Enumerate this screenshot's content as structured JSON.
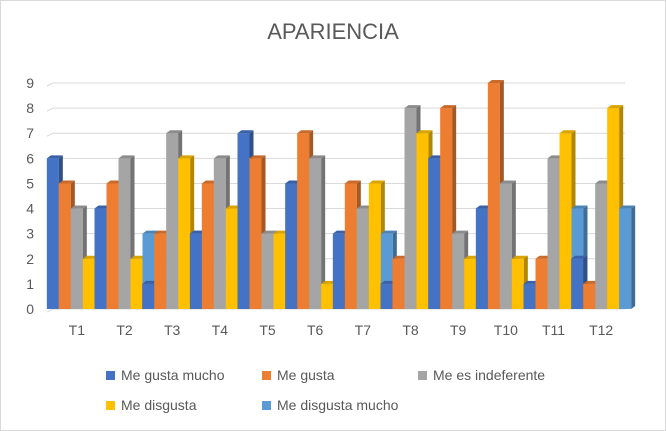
{
  "chart_data": {
    "type": "bar",
    "title": "APARIENCIA",
    "categories": [
      "T1",
      "T2",
      "T3",
      "T4",
      "T5",
      "T6",
      "T7",
      "T8",
      "T9",
      "T10",
      "T11",
      "T12"
    ],
    "series": [
      {
        "name": "Me gusta mucho",
        "color": "#4472c4",
        "values": [
          6,
          4,
          1,
          3,
          7,
          5,
          3,
          1,
          6,
          4,
          1,
          2
        ]
      },
      {
        "name": "Me gusta",
        "color": "#ed7d31",
        "values": [
          5,
          5,
          3,
          5,
          6,
          7,
          5,
          2,
          8,
          9,
          2,
          1
        ]
      },
      {
        "name": "Me es indeferente",
        "color": "#a5a5a5",
        "values": [
          4,
          6,
          7,
          6,
          3,
          6,
          4,
          8,
          3,
          5,
          6,
          5
        ]
      },
      {
        "name": "Me disgusta",
        "color": "#ffc000",
        "values": [
          2,
          2,
          6,
          4,
          3,
          1,
          5,
          7,
          2,
          2,
          7,
          8
        ]
      },
      {
        "name": "Me disgusta mucho",
        "color": "#5b9bd5",
        "values": [
          3,
          3,
          3,
          2,
          1,
          1,
          3,
          2,
          1,
          0,
          4,
          4
        ]
      }
    ],
    "ylim": [
      0,
      9
    ],
    "yticks": [
      "0",
      "1",
      "2",
      "3",
      "4",
      "5",
      "6",
      "7",
      "8",
      "9"
    ],
    "grid": true,
    "legend_position": "bottom",
    "style": "3d-clustered-column"
  }
}
